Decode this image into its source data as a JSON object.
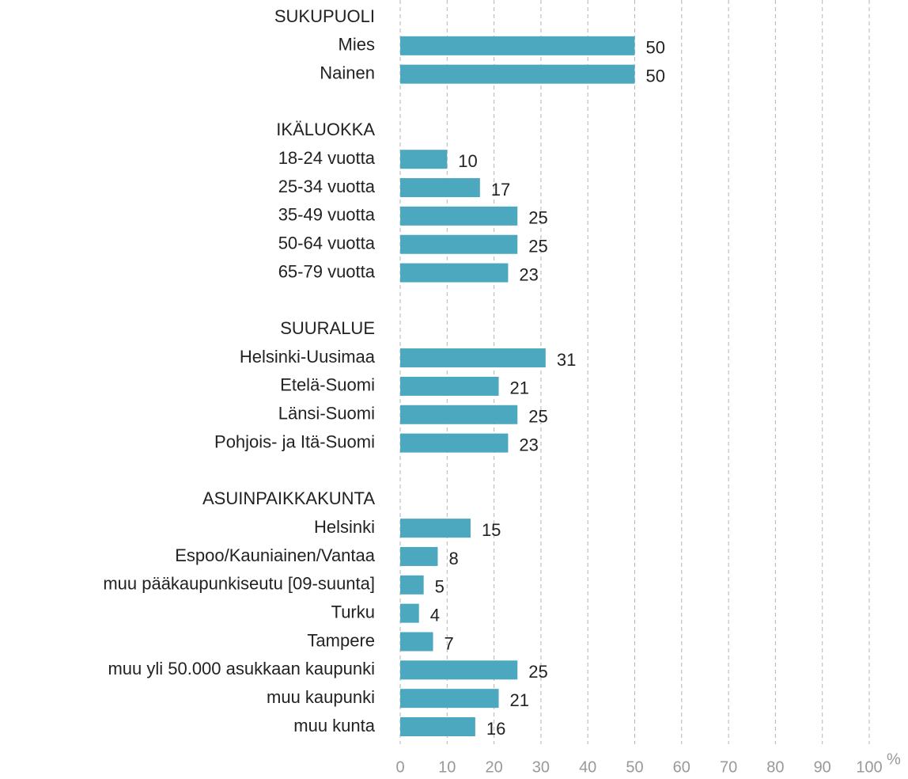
{
  "chart_data": {
    "type": "bar",
    "orientation": "horizontal",
    "categories": [
      "SUKUPUOLI",
      "Mies",
      "Nainen",
      null,
      "IKÄLUOKKA",
      "18-24 vuotta",
      "25-34 vuotta",
      "35-49 vuotta",
      "50-64 vuotta",
      "65-79 vuotta",
      null,
      "SUURALUE",
      "Helsinki-Uusimaa",
      "Etelä-Suomi",
      "Länsi-Suomi",
      "Pohjois- ja Itä-Suomi",
      null,
      "ASUINPAIKKAKUNTA",
      "Helsinki",
      "Espoo/Kauniainen/Vantaa",
      "muu pääkaupunkiseutu [09-suunta]",
      "Turku",
      "Tampere",
      "muu yli 50.000 asukkaan kaupunki",
      "muu kaupunki",
      "muu kunta"
    ],
    "values": [
      null,
      50,
      50,
      null,
      null,
      10,
      17,
      25,
      25,
      23,
      null,
      null,
      31,
      21,
      25,
      23,
      null,
      null,
      15,
      8,
      5,
      4,
      7,
      25,
      21,
      16
    ],
    "color": "#4ba8be",
    "xlim": [
      0,
      100
    ],
    "xticks": [
      0,
      10,
      20,
      30,
      40,
      50,
      60,
      70,
      80,
      90,
      100
    ],
    "x_unit": "%",
    "grid": true
  }
}
